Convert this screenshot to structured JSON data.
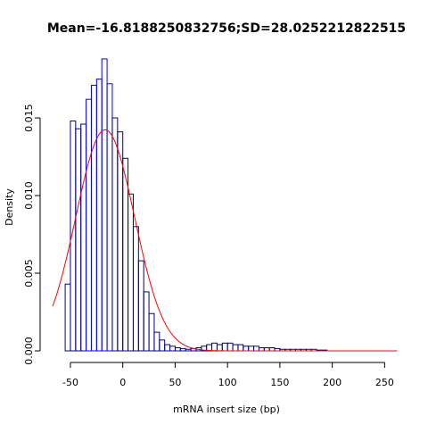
{
  "chart_data": {
    "type": "bar",
    "title": "Mean=-16.8188250832756;SD=28.0252212822515",
    "xlabel": "mRNA insert size (bp)",
    "ylabel": "Density",
    "xlim": [
      -67,
      265
    ],
    "ylim": [
      0,
      0.0192
    ],
    "x_ticks": [
      -50,
      0,
      50,
      100,
      150,
      200,
      250
    ],
    "x_tick_labels": [
      "-50",
      "0",
      "50",
      "100",
      "150",
      "200",
      "250"
    ],
    "y_ticks": [
      0.0,
      0.005,
      0.01,
      0.015
    ],
    "y_tick_labels": [
      "0.000",
      "0.005",
      "0.010",
      "0.015"
    ],
    "bin_width": 5,
    "bin_starts": [
      -55,
      -50,
      -45,
      -40,
      -35,
      -30,
      -25,
      -20,
      -15,
      -10,
      -5,
      0,
      5,
      10,
      15,
      20,
      25,
      30,
      35,
      40,
      45,
      50,
      55,
      60,
      65,
      70,
      75,
      80,
      85,
      90,
      95,
      100,
      105,
      110,
      115,
      120,
      125,
      130,
      135,
      140,
      145,
      150,
      155,
      160,
      165,
      170,
      175,
      180,
      185,
      190
    ],
    "values": [
      0.0043,
      0.0148,
      0.0143,
      0.0146,
      0.0162,
      0.0171,
      0.0175,
      0.0188,
      0.0172,
      0.015,
      0.0141,
      0.0124,
      0.0101,
      0.008,
      0.0058,
      0.0038,
      0.0024,
      0.0012,
      0.0007,
      0.0004,
      0.0003,
      0.0002,
      0.00015,
      0.0001,
      0.00015,
      0.0002,
      0.0003,
      0.0004,
      0.0005,
      0.0004,
      0.0005,
      0.0005,
      0.0004,
      0.0004,
      0.0003,
      0.0003,
      0.0003,
      0.0002,
      0.0002,
      0.0002,
      0.00015,
      0.0001,
      0.0001,
      0.0001,
      0.0001,
      0.0001,
      0.0001,
      0.0001,
      5e-05,
      5e-05
    ],
    "density_curve": {
      "type": "normal",
      "mean": -16.8188250832756,
      "sd": 28.0252212822515
    },
    "colors": {
      "bar_stroke_dark": "#00008b",
      "bar_stroke_light": "#0000ff",
      "curve": "#ff0000",
      "axis": "#000000"
    }
  }
}
